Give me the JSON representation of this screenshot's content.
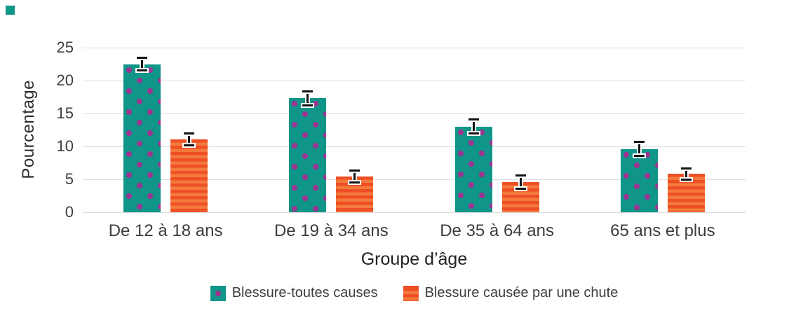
{
  "chart_data": {
    "type": "bar",
    "title": "",
    "xlabel": "Groupe d’âge",
    "ylabel": "Pourcentage",
    "categories": [
      "De 12 à 18 ans",
      "De 19 à 34 ans",
      "De 35 à 64 ans",
      "65 ans et plus"
    ],
    "series": [
      {
        "name": "Blessure-toutes causes",
        "values": [
          22.5,
          17.3,
          13.0,
          9.6
        ],
        "error_low": [
          21.5,
          16.2,
          12.0,
          8.6
        ],
        "error_high": [
          23.5,
          18.3,
          14.1,
          10.7
        ],
        "fill": "#0f9689",
        "pattern": "dots",
        "pattern_color": "#9b3591"
      },
      {
        "name": "Blessure causée par une chute",
        "values": [
          11.1,
          5.4,
          4.6,
          5.8
        ],
        "error_low": [
          10.2,
          4.5,
          3.6,
          5.0
        ],
        "error_high": [
          12.0,
          6.3,
          5.6,
          6.7
        ],
        "fill": "#ee4f25",
        "pattern": "stripes",
        "pattern_color": "#f47a3c"
      }
    ],
    "yticks": [
      0,
      5,
      10,
      15,
      20,
      25
    ],
    "ylim": [
      0,
      25
    ],
    "grid": true,
    "legend_position": "bottom",
    "gridline_color": "#dcdcdc",
    "errorbar_color": "#141414",
    "corner_mark_color": "#16a08f"
  }
}
